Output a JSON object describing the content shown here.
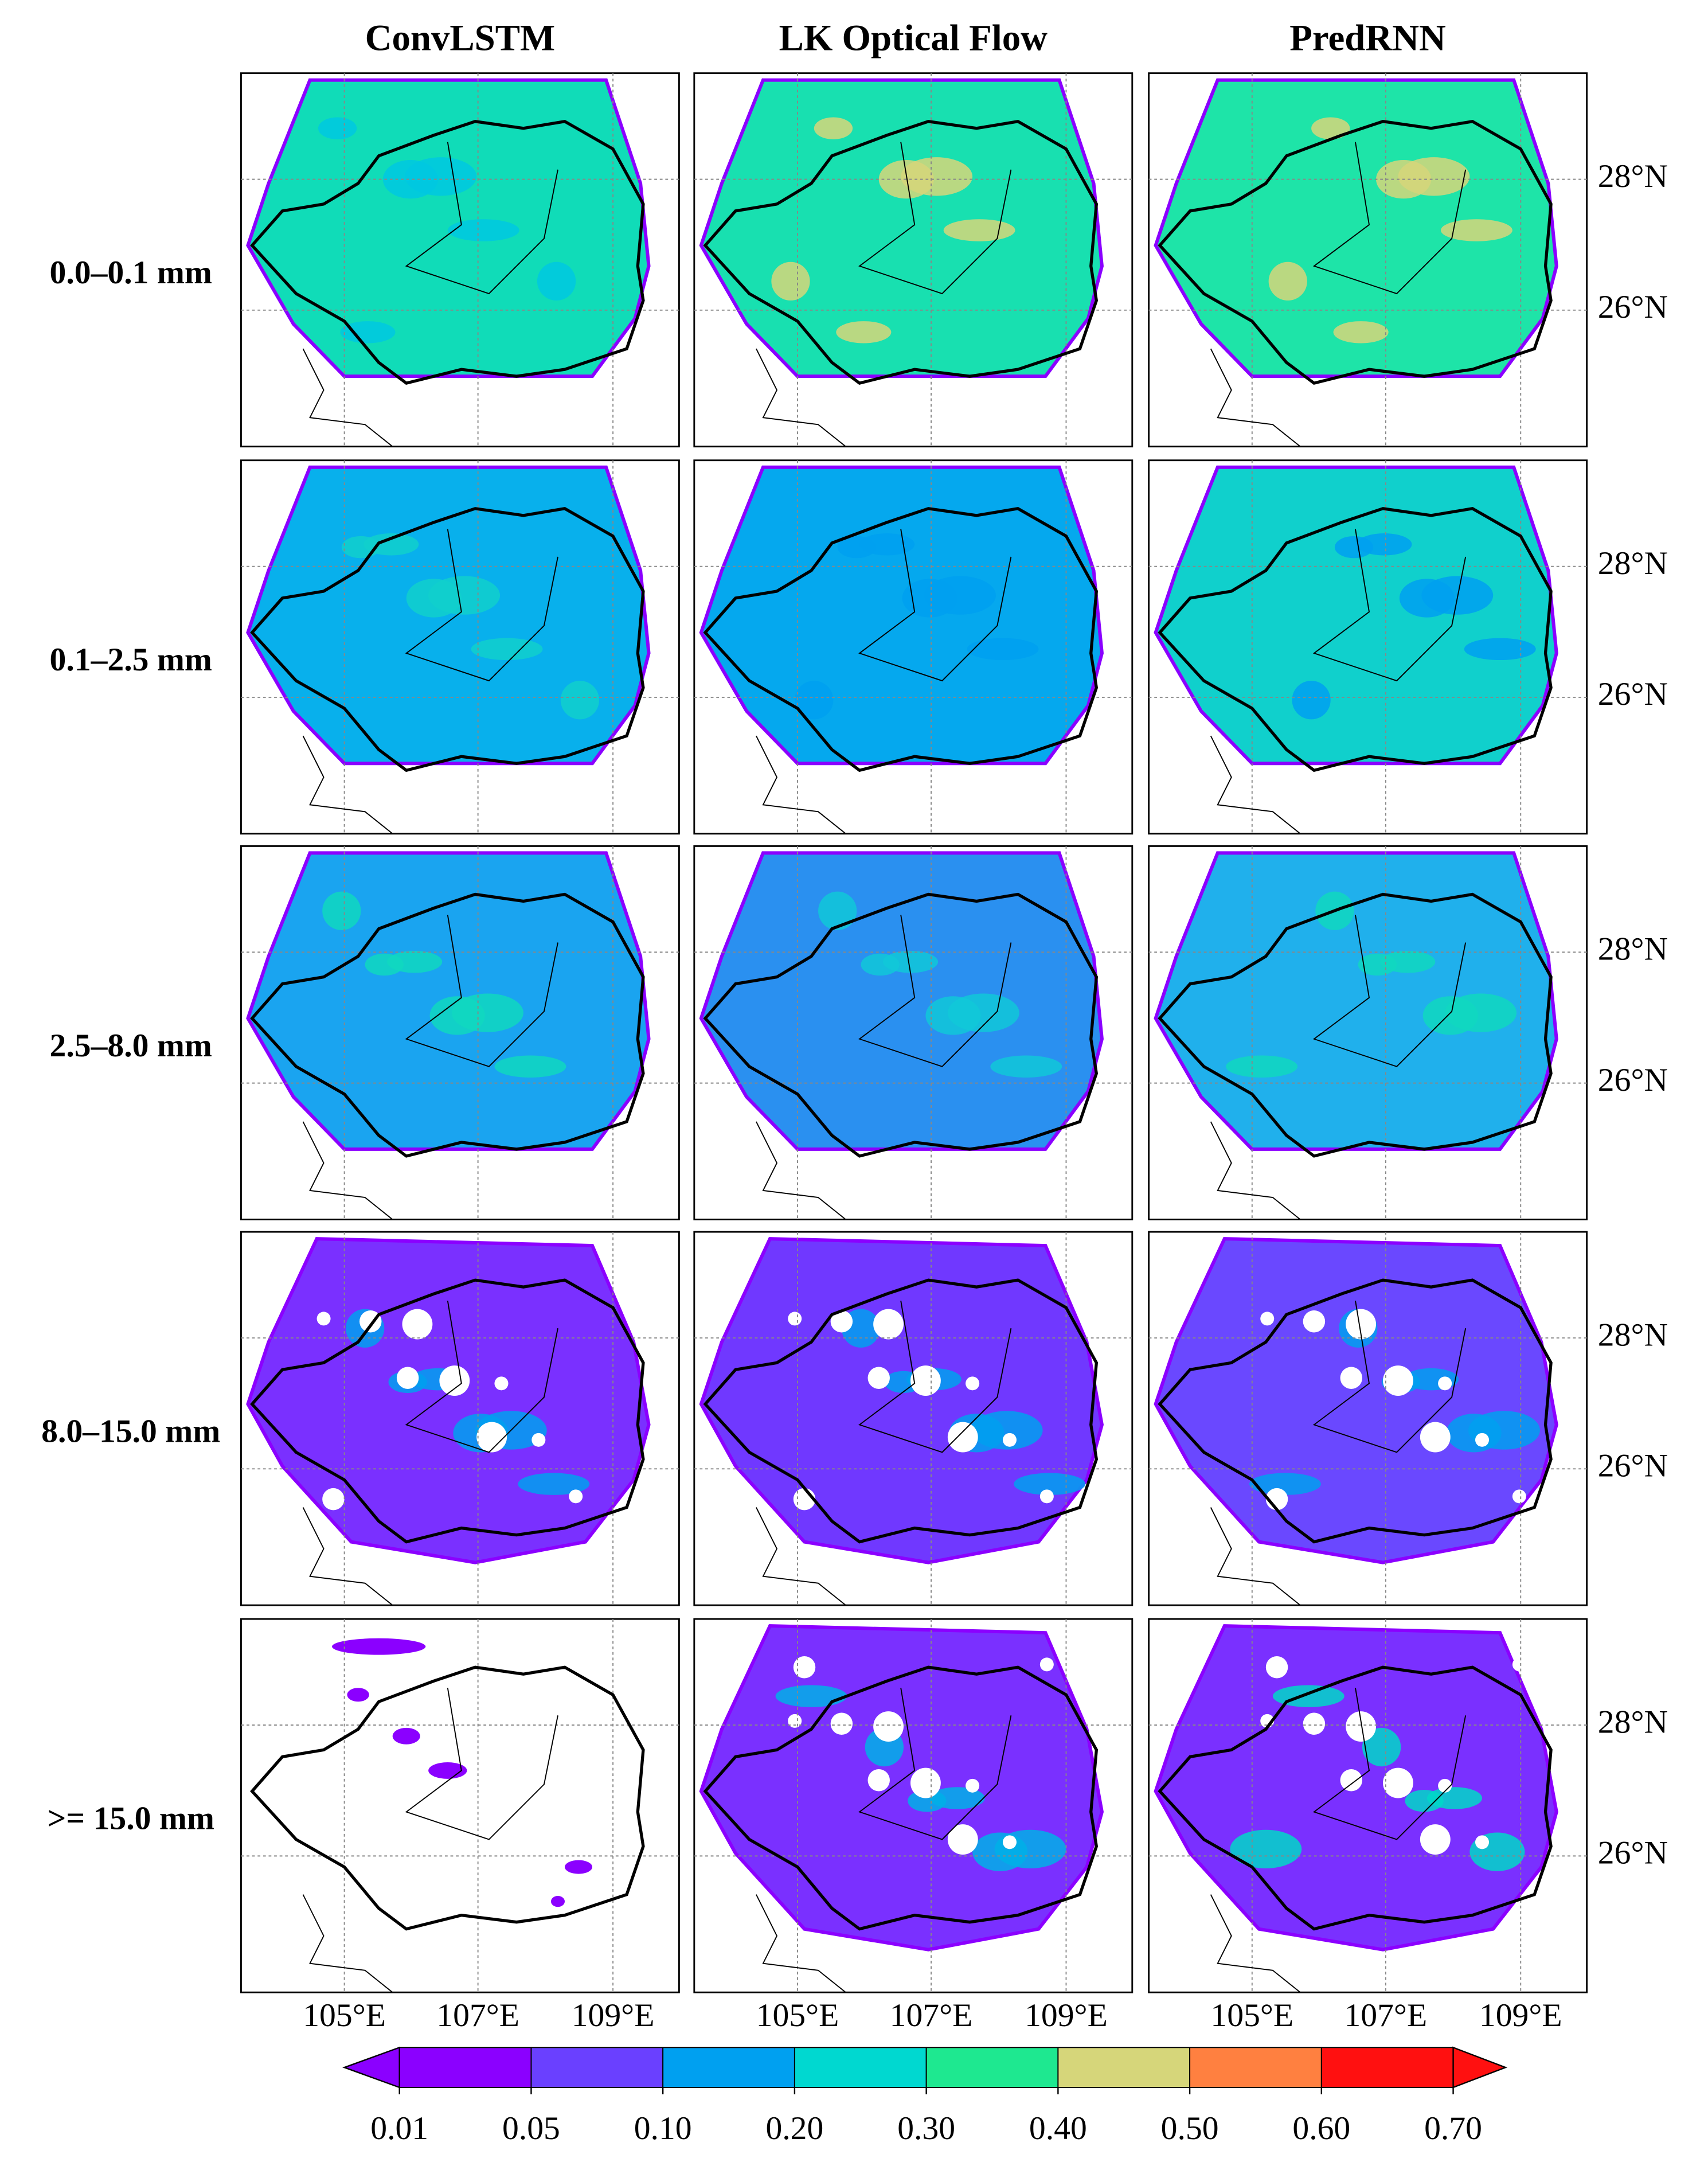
{
  "column_titles": [
    "ConvLSTM",
    "LK Optical Flow",
    "PredRNN"
  ],
  "row_labels": [
    "0.0–0.1 mm",
    "0.1–2.5 mm",
    "2.5–8.0 mm",
    "8.0–15.0 mm",
    ">= 15.0 mm"
  ],
  "lon_labels": [
    "105°E",
    "107°E",
    "109°E"
  ],
  "lat_labels": [
    "28°N",
    "26°N"
  ],
  "colorbar": {
    "ticks": [
      0.01,
      0.05,
      {
        "value": 0.1,
        "label": "0.10"
      },
      {
        "value": 0.2,
        "label": "0.20"
      },
      {
        "value": 0.3,
        "label": "0.30"
      },
      {
        "value": 0.4,
        "label": "0.40"
      },
      {
        "value": 0.5,
        "label": "0.50"
      },
      {
        "value": 0.6,
        "label": "0.60"
      },
      {
        "value": 0.7,
        "label": "0.70"
      }
    ],
    "colors": [
      "#8b00ff",
      "#8b00ff",
      "#6a40ff",
      "#00a0f0",
      "#00d8d0",
      "#1ee890",
      "#d6d67a",
      "#ff8040",
      "#ff1010",
      "#ff1010"
    ]
  }
}
